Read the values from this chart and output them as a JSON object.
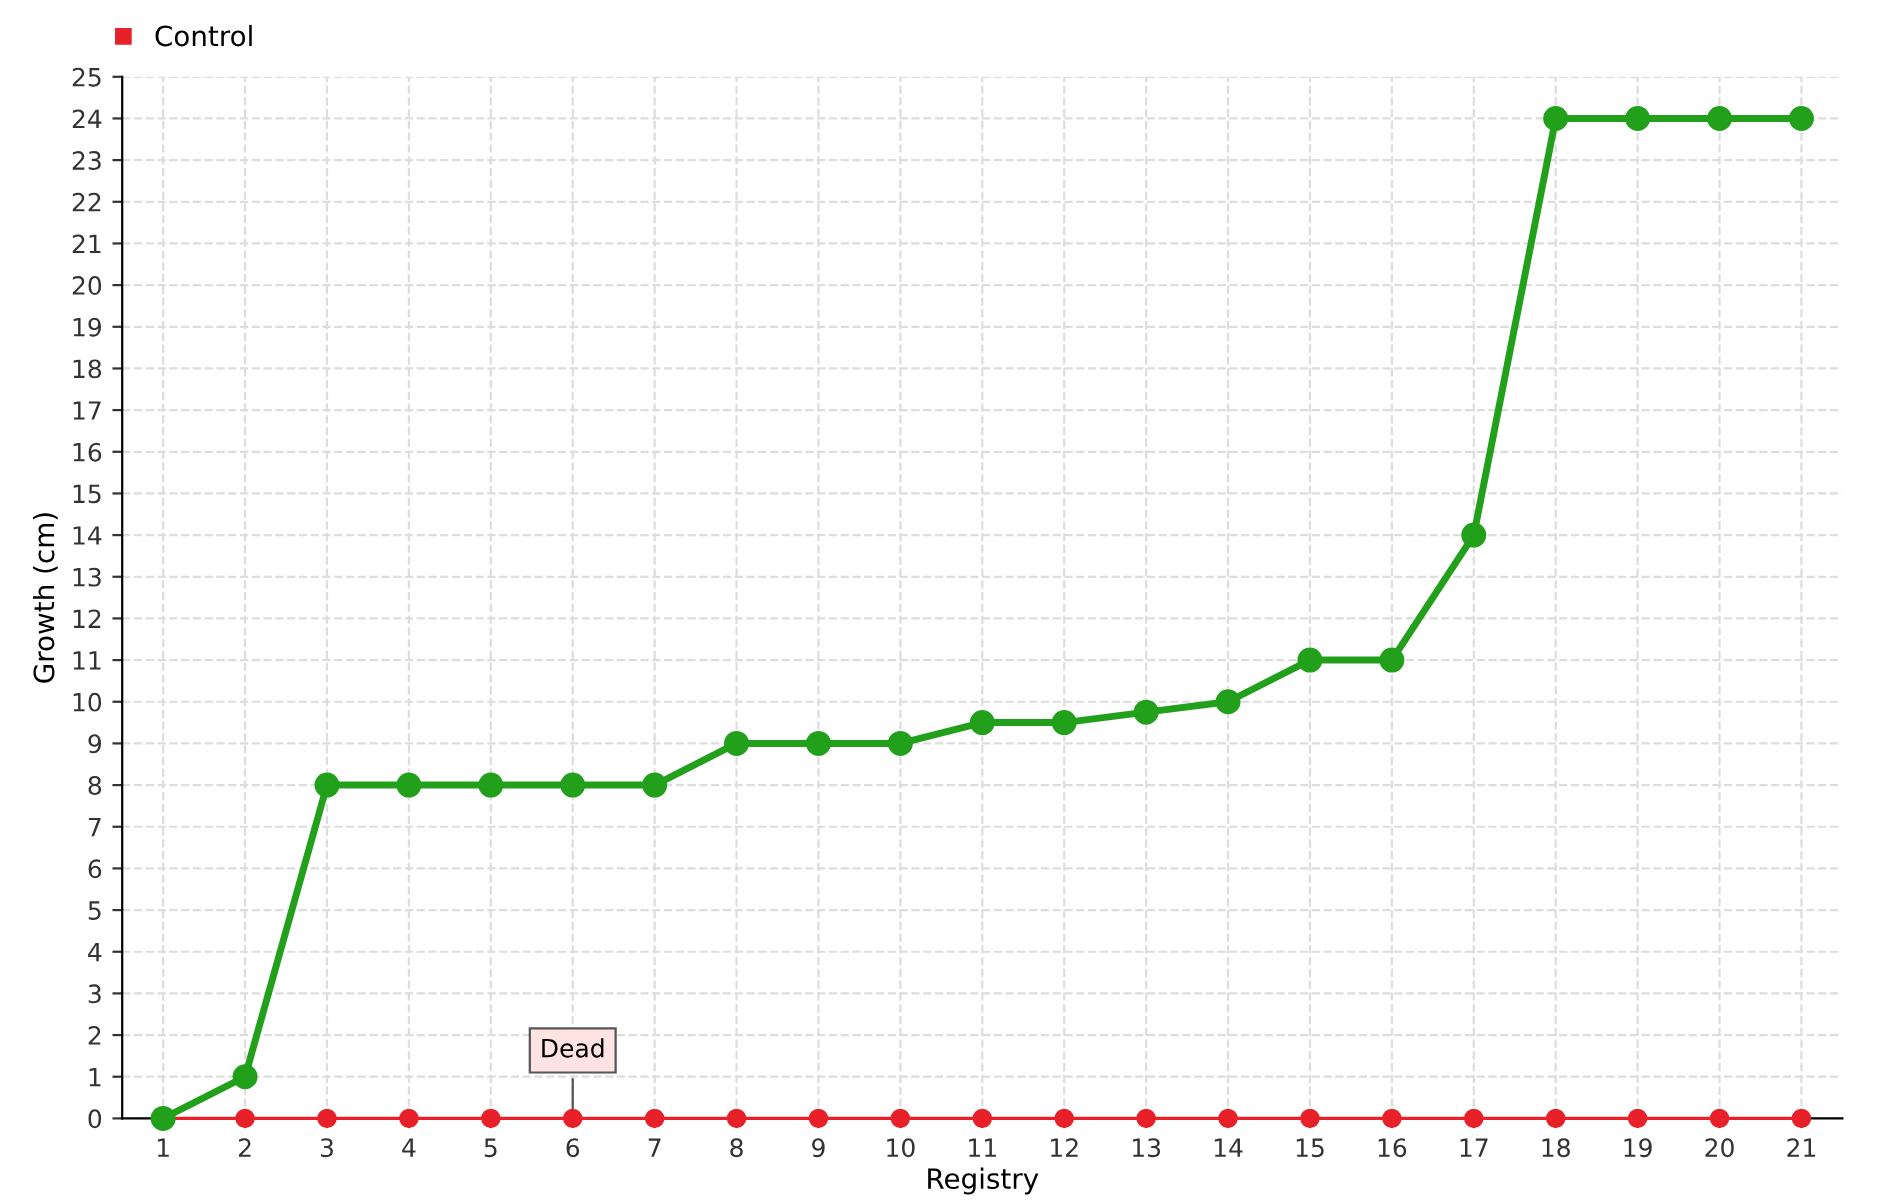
{
  "chart_data": {
    "type": "line",
    "xlabel": "Registry",
    "ylabel": "Growth (cm)",
    "categories": [
      "1",
      "2",
      "3",
      "4",
      "5",
      "6",
      "7",
      "8",
      "9",
      "10",
      "11",
      "12",
      "13",
      "14",
      "15",
      "16",
      "17",
      "18",
      "19",
      "20",
      "21"
    ],
    "series": [
      {
        "color": "#22a01c",
        "values": [
          0,
          1,
          8,
          8,
          8,
          8,
          8,
          9,
          9,
          9,
          9.5,
          9.5,
          9.75,
          10,
          11,
          11,
          14,
          24,
          24,
          24,
          24
        ]
      },
      {
        "name": "Control",
        "color": "#e8202a",
        "values": [
          0,
          0,
          0,
          0,
          0,
          0,
          0,
          0,
          0,
          0,
          0,
          0,
          0,
          0,
          0,
          0,
          0,
          0,
          0,
          0,
          0
        ]
      }
    ],
    "ylim": [
      0,
      25
    ],
    "yticks": [
      0,
      1,
      2,
      3,
      4,
      5,
      6,
      7,
      8,
      9,
      10,
      11,
      12,
      13,
      14,
      15,
      16,
      17,
      18,
      19,
      20,
      21,
      22,
      23,
      24,
      25
    ],
    "grid": true,
    "legend": "top left",
    "marker": "circle",
    "line_style": "solid",
    "annotations": [
      {
        "text": "Dead",
        "x": "6",
        "y": 0
      }
    ]
  }
}
